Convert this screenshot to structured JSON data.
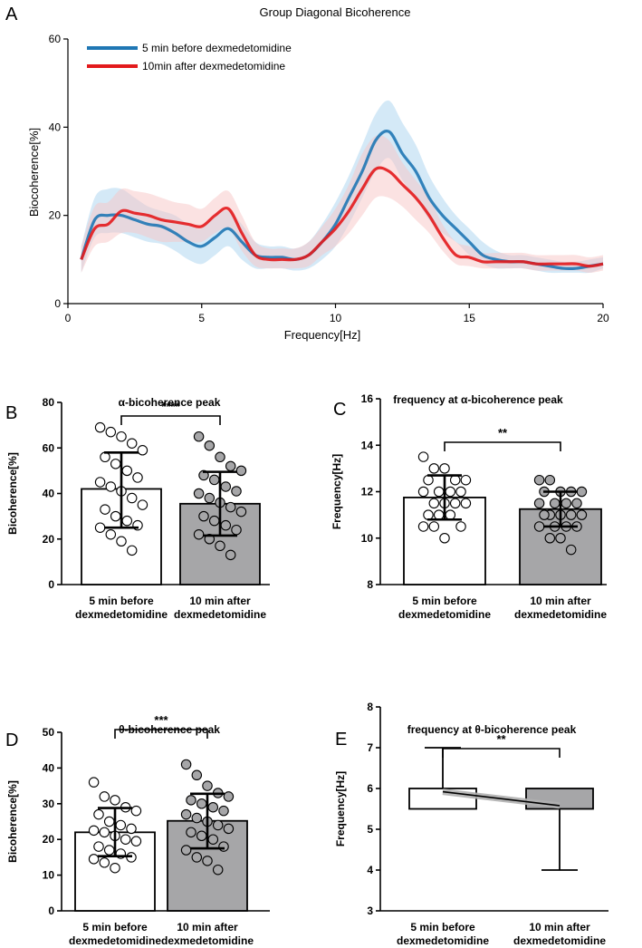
{
  "chart_data": [
    {
      "panel": "A",
      "type": "line",
      "title": "Group Diagonal Bicoherence",
      "xlabel": "Frequency[Hz]",
      "ylabel": "Biocoherence[%]",
      "xlim": [
        0,
        20
      ],
      "ylim": [
        0,
        60
      ],
      "xticks": [
        0,
        5,
        10,
        15,
        20
      ],
      "yticks": [
        0,
        20,
        40,
        60
      ],
      "x": [
        0.5,
        1,
        1.5,
        2,
        2.5,
        3,
        3.5,
        4,
        4.5,
        5,
        5.5,
        6,
        6.5,
        7,
        7.5,
        8,
        8.5,
        9,
        9.5,
        10,
        10.5,
        11,
        11.5,
        12,
        12.5,
        13,
        13.5,
        14,
        14.5,
        15,
        15.5,
        16,
        16.5,
        17,
        17.5,
        18,
        18.5,
        19,
        19.5,
        20
      ],
      "series": [
        {
          "name": "5 min before  dexmedetomidine",
          "color": "#1f77b4",
          "band_color": "#a9d4f0",
          "values": [
            10,
            19,
            20,
            20,
            19,
            18,
            17.5,
            16,
            14,
            13,
            15,
            17,
            14,
            11,
            10.5,
            10.5,
            10,
            11,
            14,
            18,
            24,
            30,
            37,
            39,
            34,
            30,
            24,
            20,
            17,
            14,
            11,
            10,
            9.5,
            9.5,
            9,
            8.5,
            8,
            8,
            8.5,
            9
          ],
          "band_lower": [
            7,
            15,
            16,
            16,
            15,
            14,
            13.5,
            12,
            10,
            9,
            11,
            13,
            10,
            8,
            8,
            8,
            7.5,
            8,
            10,
            13,
            18,
            24,
            30,
            33,
            28,
            24,
            19,
            16,
            14,
            11,
            9,
            8,
            8,
            8,
            7.5,
            7,
            7,
            7,
            7,
            8
          ],
          "band_upper": [
            13,
            24,
            26,
            26,
            24,
            22,
            21,
            20,
            18,
            17,
            20,
            21,
            18,
            14,
            13,
            13,
            12.5,
            14,
            18,
            23,
            29,
            36,
            43,
            46,
            41,
            36,
            29,
            24,
            20,
            17,
            14,
            12,
            11,
            11,
            10.5,
            10,
            9.5,
            9.5,
            10,
            10.5
          ]
        },
        {
          "name": "10min after   dexmedetomidine",
          "color": "#e31a1c",
          "band_color": "#f7c6c6",
          "values": [
            10,
            17,
            18,
            21,
            20.5,
            20,
            19,
            18.5,
            18,
            17.5,
            20,
            21.5,
            16,
            11,
            10,
            10,
            10,
            11,
            14,
            17,
            21,
            26,
            30.5,
            30,
            27,
            24,
            20,
            15,
            11,
            10.5,
            9.5,
            9.5,
            9.5,
            9.5,
            9,
            9,
            9,
            9,
            8.5,
            9
          ],
          "band_lower": [
            7,
            13,
            14,
            16,
            16,
            15,
            14,
            14,
            14,
            14,
            16,
            17,
            12,
            8.5,
            8,
            8,
            8,
            8.5,
            11,
            13,
            16,
            20,
            24,
            24,
            22,
            19,
            16,
            12,
            9,
            8.5,
            8,
            8,
            8,
            8,
            7.5,
            7.5,
            7.5,
            7.5,
            7,
            7.5
          ],
          "band_upper": [
            13,
            22,
            23,
            26,
            25.5,
            25,
            24,
            23,
            22.5,
            21.5,
            24,
            25.5,
            20,
            14,
            12.5,
            12.5,
            12.5,
            14,
            17.5,
            21.5,
            27,
            34,
            38,
            37,
            32,
            28,
            24,
            18,
            14,
            13,
            11.5,
            11.5,
            11.5,
            11.5,
            11,
            11,
            11,
            11,
            10.5,
            11
          ]
        }
      ]
    },
    {
      "panel": "B",
      "type": "bar",
      "title": "α-bicoherence peak",
      "ylabel": "Bicoherence[%]",
      "ylim": [
        0,
        80
      ],
      "yticks": [
        0,
        20,
        40,
        60,
        80
      ],
      "categories": [
        "5 min before\ndexmedetomidine",
        "10 min after\ndexmedetomidine"
      ],
      "means": [
        42,
        35.5
      ],
      "sd_lower": [
        25,
        21.5
      ],
      "sd_upper": [
        58,
        49.5
      ],
      "significance": "****",
      "points": [
        [
          69,
          67,
          65,
          62,
          59,
          56,
          53,
          50,
          47,
          45,
          43,
          41,
          38,
          35,
          33,
          30,
          28,
          26,
          25,
          22,
          19,
          15
        ],
        [
          65,
          61,
          56,
          52,
          50,
          48,
          46,
          43,
          41,
          40,
          38,
          36,
          34,
          32,
          30,
          28,
          26,
          24,
          22,
          20,
          17,
          13
        ]
      ]
    },
    {
      "panel": "C",
      "type": "bar",
      "title": "frequency at α-bicoherence peak",
      "ylabel": "Frequency[Hz]",
      "ylim": [
        8,
        16
      ],
      "yticks": [
        8,
        10,
        12,
        14,
        16
      ],
      "categories": [
        "5 min before\ndexmedetomidine",
        "10 min after\ndexmedetomidine"
      ],
      "means": [
        11.75,
        11.25
      ],
      "sd_lower": [
        10.8,
        10.5
      ],
      "sd_upper": [
        12.7,
        12
      ],
      "significance": "**",
      "points": [
        [
          13.5,
          13,
          13,
          12.5,
          12.5,
          12.5,
          12,
          12,
          12,
          12,
          11.5,
          11.5,
          11.5,
          11.5,
          11,
          11,
          11,
          10.5,
          10.5,
          10.5,
          10
        ],
        [
          12.5,
          12.5,
          12,
          12,
          12,
          12,
          11.5,
          11.5,
          11.5,
          11.5,
          11,
          11,
          11,
          11,
          11,
          10.5,
          10.5,
          10.5,
          10.5,
          10,
          10,
          9.5
        ]
      ]
    },
    {
      "panel": "D",
      "type": "bar",
      "title": "θ-bicoherence peak",
      "ylabel": "Bicoherence[%]",
      "ylim": [
        0,
        50
      ],
      "yticks": [
        0,
        10,
        20,
        30,
        40,
        50
      ],
      "categories": [
        "5 min before\ndexmedetomidine",
        "10 min after\ndexmedetomidine"
      ],
      "means": [
        22,
        25.2
      ],
      "sd_lower": [
        15.3,
        17.5
      ],
      "sd_upper": [
        28.8,
        32.8
      ],
      "significance": "***",
      "points": [
        [
          36,
          32,
          31,
          29,
          28,
          27,
          25,
          24,
          23,
          22.5,
          22,
          21,
          20,
          19.5,
          18,
          17,
          16,
          15,
          14.5,
          13.5,
          12
        ],
        [
          41,
          38,
          35,
          33,
          32,
          31,
          30,
          29,
          28,
          27,
          26,
          25,
          24,
          23,
          22,
          21,
          20,
          18,
          17,
          15,
          14,
          11.5
        ]
      ]
    },
    {
      "panel": "E",
      "type": "box",
      "title": "frequency at θ-bicoherence peak",
      "ylabel": "Frequency[Hz]",
      "ylim": [
        3,
        8
      ],
      "yticks": [
        3,
        4,
        5,
        6,
        7,
        8
      ],
      "categories": [
        "5 min before\ndexmedetomidine",
        "10 min after\ndexmedetomidine"
      ],
      "q1": [
        5.5,
        5.5
      ],
      "q3": [
        6,
        6
      ],
      "whisker_low": [
        5.5,
        4
      ],
      "whisker_high": [
        7,
        6
      ],
      "mean_line": [
        5.92,
        5.58
      ],
      "significance": "**"
    }
  ],
  "panel_letters": [
    "A",
    "B",
    "C",
    "D",
    "E"
  ],
  "colors": {
    "before_fill": "#ffffff",
    "after_fill": "#a6a6a8",
    "point_after": "#a6a6a8",
    "axis": "#000000"
  }
}
